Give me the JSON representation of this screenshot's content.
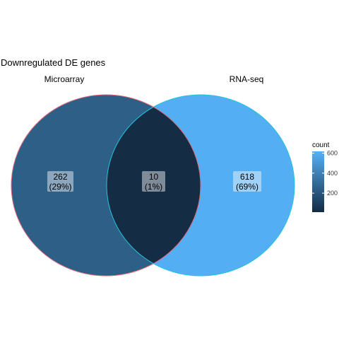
{
  "chart_data": {
    "type": "venn",
    "title": "Downregulated DE genes",
    "sets": [
      {
        "name": "Microarray",
        "only_count": 262,
        "only_percent": "29%"
      },
      {
        "name": "RNA-seq",
        "only_count": 618,
        "only_percent": "69%"
      }
    ],
    "intersection": {
      "count": 10,
      "percent": "1%"
    },
    "regions": [
      {
        "label": "Microarray only",
        "count": 262,
        "percent_label": "(29%)"
      },
      {
        "label": "Intersection",
        "count": 10,
        "percent_label": "(1%)"
      },
      {
        "label": "RNA-seq only",
        "count": 618,
        "percent_label": "(69%)"
      }
    ],
    "legend": {
      "title": "count",
      "ticks": [
        200,
        400,
        600
      ],
      "range": [
        10,
        618
      ],
      "color_low": "#132b43",
      "color_high": "#56b1f7",
      "position": "right"
    },
    "colors": {
      "microarray_fill": "#2e5f87",
      "rnaseq_fill": "#53aef3",
      "intersection_fill": "#152c45",
      "microarray_stroke": "#e06a7a",
      "rnaseq_stroke": "#22c4dc"
    }
  }
}
